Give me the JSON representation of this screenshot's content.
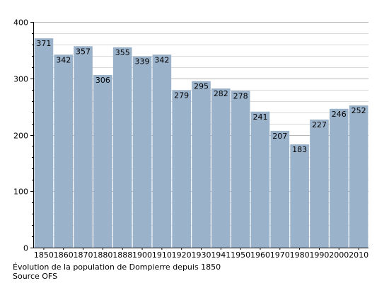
{
  "chart_data": {
    "type": "bar",
    "categories": [
      "1850",
      "1860",
      "1870",
      "1880",
      "1888",
      "1900",
      "1910",
      "1920",
      "1930",
      "1941",
      "1950",
      "1960",
      "1970",
      "1980",
      "1990",
      "2000",
      "2010"
    ],
    "values": [
      371,
      342,
      357,
      306,
      355,
      339,
      342,
      279,
      295,
      282,
      278,
      241,
      207,
      183,
      227,
      246,
      252
    ],
    "title": "",
    "xlabel": "",
    "ylabel": "",
    "ylim": [
      0,
      400
    ],
    "yticks": [
      0,
      100,
      200,
      300,
      400
    ],
    "grid": true,
    "legend": "none",
    "bar_color": "#9bb2cb",
    "grid_color": "#d9d9d9",
    "axis_color": "#000000"
  },
  "caption": {
    "line1": "Évolution de la population de Dompierre depuis 1850",
    "line2": "Source OFS"
  }
}
